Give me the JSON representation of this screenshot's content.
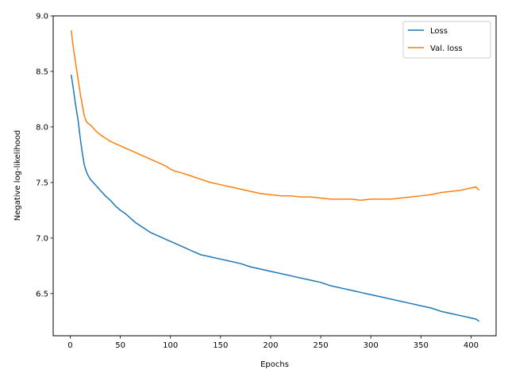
{
  "chart_data": {
    "type": "line",
    "title": "",
    "xlabel": "Epochs",
    "ylabel": "Negative log-likelihood",
    "xlim": [
      -17,
      425
    ],
    "ylim": [
      6.12,
      9.0
    ],
    "xticks": [
      0,
      50,
      100,
      150,
      200,
      250,
      300,
      350,
      400
    ],
    "yticks": [
      6.5,
      7.0,
      7.5,
      8.0,
      8.5,
      9.0
    ],
    "legend_position": "top-right",
    "grid": false,
    "series": [
      {
        "name": "Loss",
        "color": "#1f77b4",
        "x": [
          1,
          3,
          5,
          8,
          10,
          12,
          14,
          16,
          18,
          20,
          23,
          26,
          30,
          35,
          40,
          45,
          50,
          55,
          60,
          65,
          70,
          75,
          80,
          85,
          90,
          95,
          100,
          105,
          110,
          115,
          120,
          125,
          130,
          140,
          150,
          160,
          170,
          180,
          190,
          200,
          210,
          220,
          230,
          240,
          250,
          260,
          270,
          280,
          290,
          300,
          310,
          320,
          330,
          340,
          350,
          360,
          370,
          380,
          390,
          400,
          405,
          408
        ],
        "values": [
          8.47,
          8.35,
          8.22,
          8.05,
          7.9,
          7.77,
          7.66,
          7.6,
          7.56,
          7.53,
          7.5,
          7.47,
          7.43,
          7.38,
          7.34,
          7.29,
          7.25,
          7.22,
          7.18,
          7.14,
          7.11,
          7.08,
          7.05,
          7.03,
          7.01,
          6.99,
          6.97,
          6.95,
          6.93,
          6.91,
          6.89,
          6.87,
          6.85,
          6.83,
          6.81,
          6.79,
          6.77,
          6.74,
          6.72,
          6.7,
          6.68,
          6.66,
          6.64,
          6.62,
          6.6,
          6.57,
          6.55,
          6.53,
          6.51,
          6.49,
          6.47,
          6.45,
          6.43,
          6.41,
          6.39,
          6.37,
          6.34,
          6.32,
          6.3,
          6.28,
          6.27,
          6.25
        ]
      },
      {
        "name": "Val. loss",
        "color": "#ff7f0e",
        "x": [
          1,
          3,
          5,
          8,
          10,
          12,
          14,
          16,
          18,
          20,
          23,
          26,
          30,
          35,
          40,
          45,
          50,
          55,
          60,
          65,
          70,
          75,
          80,
          85,
          90,
          95,
          100,
          105,
          110,
          120,
          130,
          140,
          150,
          160,
          170,
          180,
          190,
          200,
          210,
          220,
          230,
          240,
          250,
          260,
          270,
          280,
          290,
          300,
          310,
          320,
          330,
          340,
          350,
          360,
          370,
          380,
          390,
          400,
          405,
          408
        ],
        "values": [
          8.87,
          8.72,
          8.6,
          8.42,
          8.3,
          8.2,
          8.1,
          8.05,
          8.03,
          8.02,
          7.99,
          7.96,
          7.93,
          7.9,
          7.87,
          7.85,
          7.83,
          7.81,
          7.79,
          7.77,
          7.75,
          7.73,
          7.71,
          7.69,
          7.67,
          7.65,
          7.62,
          7.6,
          7.59,
          7.56,
          7.53,
          7.5,
          7.48,
          7.46,
          7.44,
          7.42,
          7.4,
          7.39,
          7.38,
          7.38,
          7.37,
          7.37,
          7.36,
          7.35,
          7.35,
          7.35,
          7.34,
          7.35,
          7.35,
          7.35,
          7.36,
          7.37,
          7.38,
          7.39,
          7.41,
          7.42,
          7.43,
          7.45,
          7.46,
          7.43
        ]
      }
    ]
  }
}
